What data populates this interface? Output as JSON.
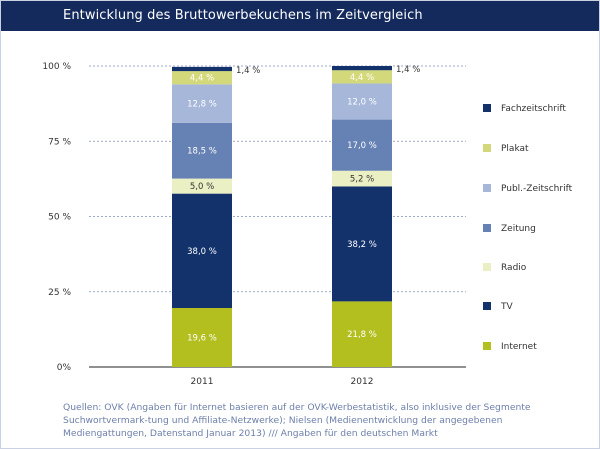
{
  "title": "Entwicklung des Bruttowerbekuchens im Zeitvergleich",
  "source_note": "Quellen: OVK (Angaben für Internet basieren auf der OVK-Werbestatistik, also inklusive der Segmente Suchwortvermark-tung und Affiliate-Netzwerke); Nielsen (Medienentwicklung der angegebenen Mediengattungen, Datenstand Januar 2013) /// Angaben für den deutschen Markt",
  "colors": {
    "header": "#142a5c",
    "gridline": "#7f8fb5"
  },
  "chart_data": {
    "type": "bar",
    "stacked": true,
    "categories": [
      "2011",
      "2012"
    ],
    "ylim": [
      0,
      100
    ],
    "yticks": [
      {
        "value": 0,
        "label": "0%"
      },
      {
        "value": 25,
        "label": "25 %"
      },
      {
        "value": 50,
        "label": "50 %"
      },
      {
        "value": 75,
        "label": "75 %"
      },
      {
        "value": 100,
        "label": "100 %"
      }
    ],
    "series": [
      {
        "name": "Internet",
        "color": "#b3bf1f",
        "text_color": "#ffffff",
        "values": [
          19.6,
          21.8
        ],
        "labels": [
          "19,6 %",
          "21,8 %"
        ]
      },
      {
        "name": "TV",
        "color": "#13316a",
        "text_color": "#ffffff",
        "values": [
          38.0,
          38.2
        ],
        "labels": [
          "38,0 %",
          "38,2 %"
        ]
      },
      {
        "name": "Radio",
        "color": "#eaefc4",
        "text_color": "#333333",
        "values": [
          5.0,
          5.2
        ],
        "labels": [
          "5,0 %",
          "5,2 %"
        ]
      },
      {
        "name": "Zeitung",
        "color": "#6681b4",
        "text_color": "#ffffff",
        "values": [
          18.5,
          17.0
        ],
        "labels": [
          "18,5 %",
          "17,0 %"
        ]
      },
      {
        "name": "Publ.-Zeitschrift",
        "color": "#a7b7d9",
        "text_color": "#ffffff",
        "values": [
          12.8,
          12.0
        ],
        "labels": [
          "12,8 %",
          "12,0 %"
        ]
      },
      {
        "name": "Plakat",
        "color": "#d3d97a",
        "text_color": "#ffffff",
        "values": [
          4.4,
          4.4
        ],
        "labels": [
          "4,4 %",
          "4,4 %"
        ]
      },
      {
        "name": "Fachzeitschrift",
        "color": "#13316a",
        "text_color": "#333333",
        "values": [
          1.4,
          1.4
        ],
        "labels": [
          "1,4 %",
          "1,4 %"
        ]
      }
    ],
    "legend_order": [
      "Fachzeitschrift",
      "Plakat",
      "Publ.-Zeitschrift",
      "Zeitung",
      "Radio",
      "TV",
      "Internet"
    ],
    "legend_position": "right",
    "grid": true
  }
}
